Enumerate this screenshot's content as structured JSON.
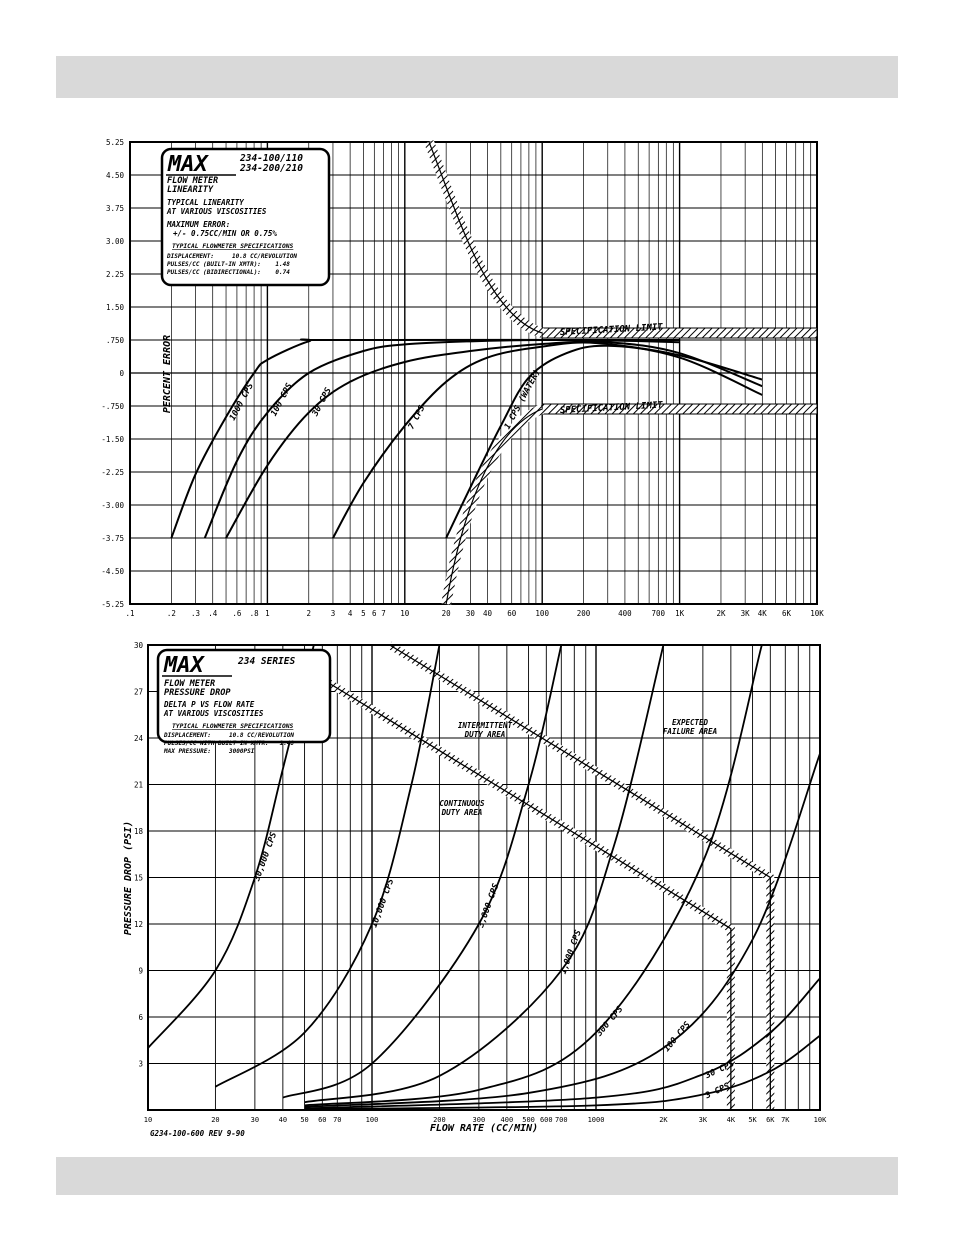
{
  "page": {
    "header_band": "",
    "footer_band": ""
  },
  "chart_data": [
    {
      "type": "line",
      "brand": "MAX",
      "model_lines": [
        "234-100/110",
        "234-200/210"
      ],
      "title": "FLOW METER LINEARITY",
      "subtitle": [
        "TYPICAL LINEARITY",
        "AT VARIOUS VISCOSITIES"
      ],
      "max_error_label": "MAXIMUM ERROR:",
      "max_error_value": "+/- 0.75CC/MIN OR 0.75%",
      "specs_title": "TYPICAL FLOWMETER SPECIFICATIONS",
      "specs": [
        "DISPLACEMENT:     10.8 CC/REVOLUTION",
        "PULSES/CC (BUILT-IN XMTR):    1.48",
        "PULSES/CC (BIDIRECTIONAL):    0.74"
      ],
      "ylabel": "PERCENT ERROR",
      "xscale": "log",
      "xlim": [
        0.1,
        10000
      ],
      "ylim": [
        -5.25,
        5.25
      ],
      "y_ticks": [
        5.25,
        4.5,
        3.75,
        3.0,
        2.25,
        1.5,
        0.75,
        0,
        -0.75,
        -1.5,
        -2.25,
        -3.0,
        -3.75,
        -4.5,
        -5.25
      ],
      "y_tick_labels": [
        "5.25",
        "4.50",
        "3.75",
        "3.00",
        "2.25",
        "1.50",
        ".750",
        "0",
        "-.750",
        "-1.50",
        "-2.25",
        "-3.00",
        "-3.75",
        "-4.50",
        "-5.25"
      ],
      "x_ticks": [
        0.1,
        0.2,
        0.3,
        0.4,
        0.6,
        0.8,
        1,
        2,
        3,
        4,
        5,
        6,
        7,
        10,
        20,
        30,
        40,
        60,
        100,
        200,
        400,
        700,
        1000,
        2000,
        3000,
        4000,
        6000,
        10000
      ],
      "x_tick_labels": [
        ".1",
        ".2",
        ".3",
        ".4",
        ".6",
        ".8",
        "1",
        "2",
        "3",
        "4",
        "5",
        "6",
        "7",
        "10",
        "20",
        "30",
        "40",
        "60",
        "100",
        "200",
        "400",
        "700",
        "1K",
        "2K",
        "3K",
        "4K",
        "6K",
        "10K"
      ],
      "spec_limit_label": "SPECIFICATION LIMIT",
      "spec_limits": [
        0.75,
        -0.75
      ],
      "grid": true,
      "series": [
        {
          "name": "1000 CPS",
          "x": [
            0.2,
            0.3,
            0.5,
            0.8,
            1,
            2,
            3,
            1000
          ],
          "y": [
            -3.75,
            -2.3,
            -1.0,
            0,
            0.3,
            0.72,
            0.75,
            0.75
          ]
        },
        {
          "name": "100 CPS",
          "x": [
            0.35,
            0.6,
            1,
            2,
            5,
            10,
            30,
            100,
            300,
            1000
          ],
          "y": [
            -3.75,
            -2.0,
            -0.9,
            0,
            0.5,
            0.65,
            0.72,
            0.75,
            0.74,
            0.7
          ]
        },
        {
          "name": "30 CPS",
          "x": [
            0.5,
            1,
            2,
            4,
            10,
            30,
            100,
            300,
            1000,
            4000
          ],
          "y": [
            -3.75,
            -2.1,
            -0.9,
            -0.2,
            0.25,
            0.5,
            0.66,
            0.7,
            0.45,
            -0.3
          ]
        },
        {
          "name": "7 CPS",
          "x": [
            3,
            5,
            10,
            20,
            40,
            100,
            250,
            1000,
            4000
          ],
          "y": [
            -3.75,
            -2.5,
            -1.2,
            -0.2,
            0.35,
            0.6,
            0.68,
            0.35,
            -0.5
          ]
        },
        {
          "name": "1 CPS (WATER)",
          "x": [
            20,
            30,
            50,
            80,
            150,
            300,
            1000,
            4000
          ],
          "y": [
            -3.75,
            -2.6,
            -1.2,
            -0.1,
            0.45,
            0.62,
            0.4,
            -0.15
          ]
        }
      ]
    },
    {
      "type": "line",
      "brand": "MAX",
      "model_lines": [
        "234 SERIES"
      ],
      "title": "FLOW METER PRESSURE DROP",
      "subtitle": [
        "DELTA P VS FLOW RATE",
        "AT VARIOUS VISCOSITIES"
      ],
      "specs_title": "TYPICAL FLOWMETER SPECIFICATIONS",
      "specs": [
        "DISPLACEMENT:     10.8 CC/REVOLUTION",
        "PULSES/CC WITH BUILT IN XMTR:   1.48",
        "MAX PRESSURE:     3000PSI"
      ],
      "xlabel": "FLOW RATE (CC/MIN)",
      "ylabel": "PRESSURE DROP (PSI)",
      "xscale": "log",
      "xlim": [
        10,
        10000
      ],
      "ylim": [
        0,
        30
      ],
      "y_ticks": [
        30,
        27,
        24,
        21,
        18,
        15,
        12,
        9,
        6,
        3
      ],
      "y_tick_labels": [
        "30",
        "27",
        "24",
        "21",
        "18",
        "15",
        "12",
        "9",
        "6",
        "3"
      ],
      "x_ticks": [
        10,
        20,
        30,
        40,
        50,
        60,
        70,
        100,
        200,
        300,
        400,
        500,
        600,
        700,
        1000,
        2000,
        3000,
        4000,
        5000,
        6000,
        7000,
        10000
      ],
      "x_tick_labels": [
        "10",
        "20",
        "30",
        "40",
        "50",
        "60",
        "70",
        "100",
        "200",
        "300",
        "400",
        "500",
        "600",
        "700",
        "1000",
        "2K",
        "3K",
        "4K",
        "5K",
        "6K",
        "7K",
        "10K"
      ],
      "area_labels": {
        "intermittent": [
          "INTERMITTENT",
          "DUTY AREA"
        ],
        "continuous": [
          "CONTINUOUS",
          "DUTY AREA"
        ],
        "failure": [
          "EXPECTED",
          "FAILURE AREA"
        ]
      },
      "footnote": "G234-100-600 REV 9-90",
      "grid": true,
      "series": [
        {
          "name": "30,000 CPS",
          "x": [
            10,
            20,
            30,
            40,
            55
          ],
          "y": [
            4,
            9,
            15,
            22,
            30
          ]
        },
        {
          "name": "10,000 CPS",
          "x": [
            20,
            50,
            100,
            150,
            200
          ],
          "y": [
            1.5,
            5,
            12,
            21,
            30
          ]
        },
        {
          "name": "3,000 CPS",
          "x": [
            40,
            100,
            300,
            500,
            700
          ],
          "y": [
            0.8,
            3,
            12,
            21,
            30
          ]
        },
        {
          "name": "1,000 CPS",
          "x": [
            50,
            200,
            700,
            1200,
            2000
          ],
          "y": [
            0.5,
            2.2,
            9,
            17,
            30
          ]
        },
        {
          "name": "300 CPS",
          "x": [
            50,
            300,
            1000,
            3000,
            5500
          ],
          "y": [
            0.3,
            1.3,
            5,
            16,
            30
          ]
        },
        {
          "name": "100 CPS",
          "x": [
            50,
            500,
            2000,
            5000,
            10000
          ],
          "y": [
            0.2,
            1.1,
            4,
            11,
            23
          ]
        },
        {
          "name": "30 CPS",
          "x": [
            50,
            1000,
            3000,
            6000,
            10000
          ],
          "y": [
            0.1,
            0.8,
            2.3,
            5,
            8.5
          ]
        },
        {
          "name": "3 CPS",
          "x": [
            50,
            1000,
            3000,
            6000,
            10000
          ],
          "y": [
            0.05,
            0.3,
            1,
            2.5,
            4.8
          ]
        }
      ]
    }
  ]
}
